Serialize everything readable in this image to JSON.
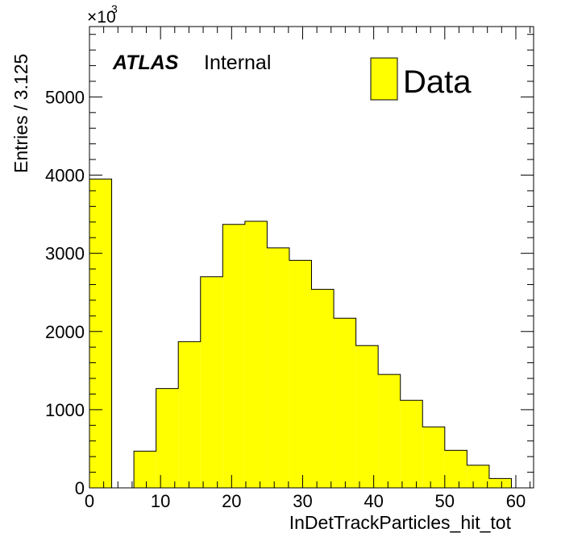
{
  "chart_data": {
    "type": "bar",
    "xlabel": "InDetTrackParticles_hit_tot",
    "ylabel": "Entries / 3.125",
    "xlim": [
      0,
      62.5
    ],
    "ylim": [
      0,
      5900
    ],
    "y_multiplier": "×10",
    "y_multiplier_exponent": "3",
    "x_ticks": [
      "0",
      "10",
      "20",
      "30",
      "40",
      "50",
      "60"
    ],
    "y_ticks": [
      "0",
      "1000",
      "2000",
      "3000",
      "4000",
      "5000"
    ],
    "bin_width": 3.125,
    "series": [
      {
        "name": "Data",
        "color": "#ffff00",
        "bins": [
          {
            "x_low": 0,
            "value": 3950
          },
          {
            "x_low": 3.125,
            "value": 0
          },
          {
            "x_low": 6.25,
            "value": 470
          },
          {
            "x_low": 9.375,
            "value": 1270
          },
          {
            "x_low": 12.5,
            "value": 1870
          },
          {
            "x_low": 15.625,
            "value": 2700
          },
          {
            "x_low": 18.75,
            "value": 3370
          },
          {
            "x_low": 21.875,
            "value": 3410
          },
          {
            "x_low": 25,
            "value": 3070
          },
          {
            "x_low": 28.125,
            "value": 2910
          },
          {
            "x_low": 31.25,
            "value": 2540
          },
          {
            "x_low": 34.375,
            "value": 2170
          },
          {
            "x_low": 37.5,
            "value": 1820
          },
          {
            "x_low": 40.625,
            "value": 1450
          },
          {
            "x_low": 43.75,
            "value": 1120
          },
          {
            "x_low": 46.875,
            "value": 780
          },
          {
            "x_low": 50,
            "value": 480
          },
          {
            "x_low": 53.125,
            "value": 290
          },
          {
            "x_low": 56.25,
            "value": 120
          },
          {
            "x_low": 59.375,
            "value": 0
          }
        ]
      }
    ],
    "legend": {
      "position": "top-right",
      "entries": [
        "Data"
      ]
    },
    "annotations": {
      "experiment": "ATLAS",
      "status": "Internal"
    },
    "grid": false
  }
}
